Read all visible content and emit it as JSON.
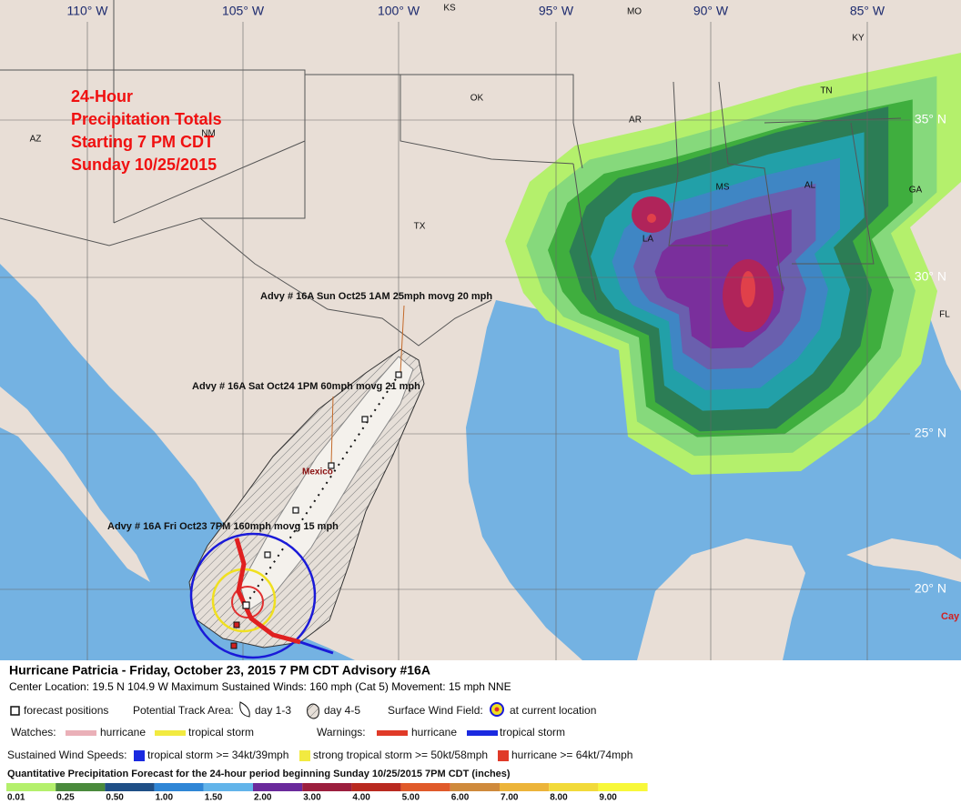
{
  "map": {
    "longitude_labels": [
      "110° W",
      "105° W",
      "100° W",
      "95° W",
      "90° W",
      "85° W"
    ],
    "latitude_labels": [
      "35° N",
      "30° N",
      "25° N",
      "20° N"
    ],
    "state_labels": [
      "KS",
      "MO",
      "KY",
      "TN",
      "OK",
      "AR",
      "AZ",
      "NM",
      "TX",
      "MS",
      "AL",
      "GA",
      "LA",
      "FL"
    ],
    "country_label": "Mexico",
    "place_label": "Cay",
    "title_lines": [
      "24-Hour",
      "Precipitation Totals",
      "Starting 7 PM CDT",
      "Sunday 10/25/2015"
    ],
    "advisories": [
      "Advy # 16A Sun Oct25 1AM 25mph movg 20 mph",
      "Advy # 16A Sat Oct24 1PM 60mph movg 21 mph",
      "Advy # 16A Fri Oct23 7PM 160mph movg 15 mph"
    ]
  },
  "legend": {
    "headline": "Hurricane Patricia  -  Friday, October 23, 2015  7 PM CDT   Advisory #16A",
    "details": "Center Location: 19.5 N  104.9 W   Maximum Sustained Winds: 160 mph (Cat 5)  Movement: 15 mph NNE",
    "forecast_positions": "forecast positions",
    "track_area": "Potential Track Area:",
    "day_1_3": "day 1-3",
    "day_4_5": "day 4-5",
    "wind_field": "Surface Wind Field:",
    "current_location": "at current location",
    "watches": "Watches:",
    "watch_hurricane": "hurricane",
    "watch_tropical_storm": "tropical storm",
    "warnings": "Warnings:",
    "warning_hurricane": "hurricane",
    "warning_tropical_storm": "tropical storm",
    "wind_speeds": "Sustained Wind Speeds:",
    "speed_ts": "tropical storm >= 34kt/39mph",
    "speed_sts": "strong tropical storm >= 50kt/58mph",
    "speed_h": "hurricane >= 64kt/74mph",
    "precip_title": "Quantitative Precipitation Forecast for the 24-hour period beginning Sunday 10/25/2015 7PM CDT (inches)",
    "precip_scale": [
      {
        "label": "0.01",
        "color": "#b4f06c"
      },
      {
        "label": "0.25",
        "color": "#4a8a3c"
      },
      {
        "label": "0.50",
        "color": "#1f4f86"
      },
      {
        "label": "1.00",
        "color": "#2f86d6"
      },
      {
        "label": "1.50",
        "color": "#62b4ea"
      },
      {
        "label": "2.00",
        "color": "#6a2a9c"
      },
      {
        "label": "3.00",
        "color": "#9c1f3e"
      },
      {
        "label": "4.00",
        "color": "#b92a20"
      },
      {
        "label": "5.00",
        "color": "#e05a2a"
      },
      {
        "label": "6.00",
        "color": "#cf8a3c"
      },
      {
        "label": "7.00",
        "color": "#ecb43a"
      },
      {
        "label": "8.00",
        "color": "#f2da3a"
      },
      {
        "label": "9.00",
        "color": "#f8f83a"
      }
    ]
  }
}
